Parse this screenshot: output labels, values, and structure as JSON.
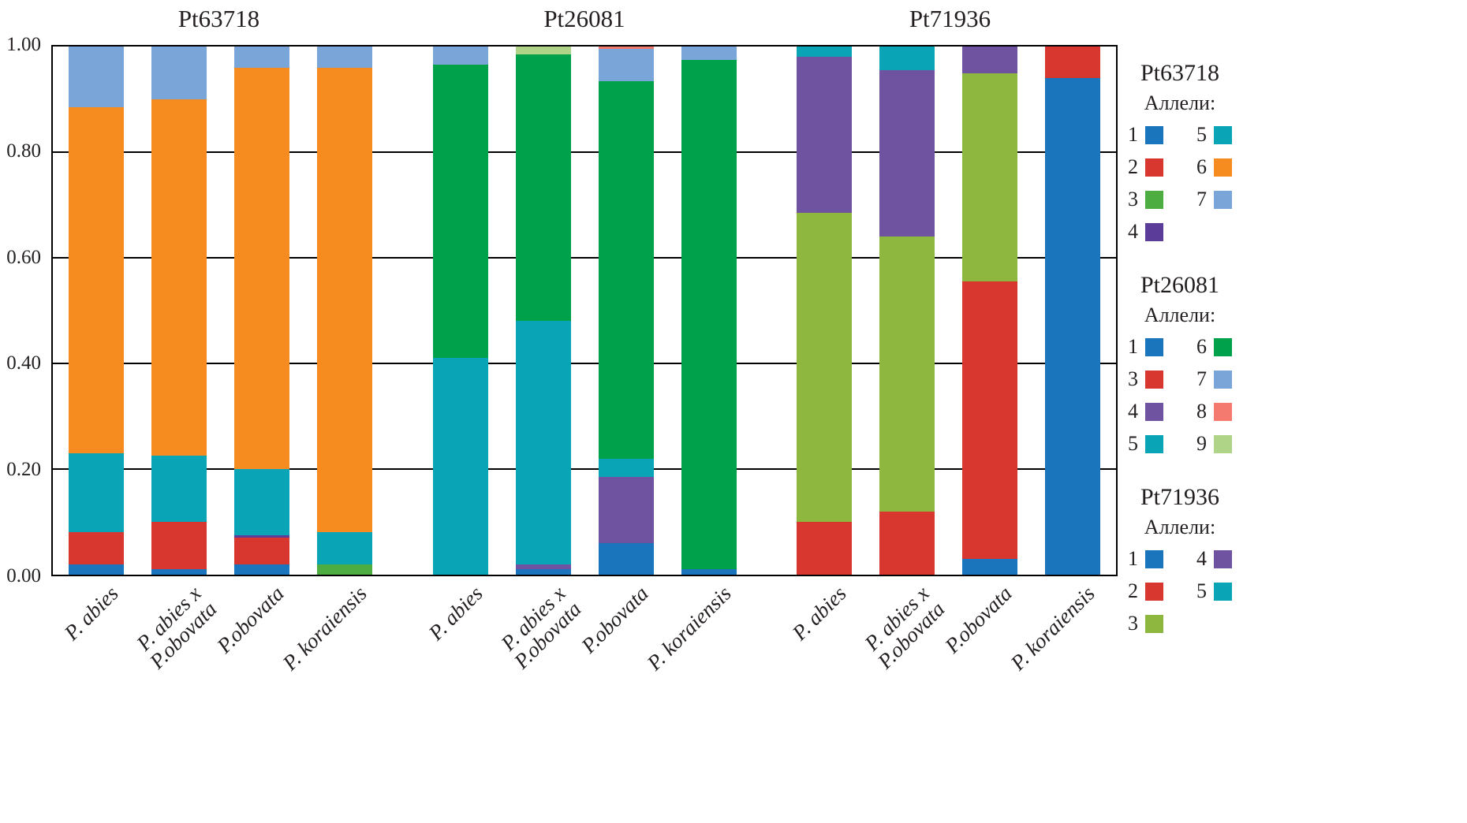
{
  "chart_data": {
    "type": "bar",
    "variant": "stacked-normalized",
    "title": "",
    "xlabel": "",
    "ylabel": "",
    "ylim": [
      0,
      1
    ],
    "yticks": [
      0,
      0.2,
      0.4,
      0.6,
      0.8,
      1
    ],
    "ytick_labels": [
      "0.00",
      "0.20",
      "0.40",
      "0.60",
      "0.80",
      "1.00"
    ],
    "grid": "horizontal",
    "legend_position": "right",
    "groups": [
      {
        "locus": "Pt63718",
        "palette": {
          "1": "#1b75bc",
          "2": "#d7372f",
          "3": "#4ead41",
          "4": "#5b3d99",
          "5": "#09a4b5",
          "6": "#f68b1f",
          "7": "#7aa5d8"
        },
        "bars": [
          {
            "category": "P. abies",
            "lines": [
              "P. abies"
            ],
            "segments": [
              [
                "1",
                0.02
              ],
              [
                "2",
                0.06
              ],
              [
                "5",
                0.15
              ],
              [
                "6",
                0.655
              ],
              [
                "7",
                0.115
              ]
            ]
          },
          {
            "category": "P. abies x P.obovata",
            "lines": [
              "P. abies x",
              "P.obovata"
            ],
            "segments": [
              [
                "1",
                0.01
              ],
              [
                "2",
                0.09
              ],
              [
                "5",
                0.125
              ],
              [
                "6",
                0.675
              ],
              [
                "7",
                0.1
              ]
            ]
          },
          {
            "category": "P.obovata",
            "lines": [
              "P.obovata"
            ],
            "segments": [
              [
                "1",
                0.02
              ],
              [
                "2",
                0.05
              ],
              [
                "4",
                0.005
              ],
              [
                "5",
                0.125
              ],
              [
                "6",
                0.76
              ],
              [
                "7",
                0.04
              ]
            ]
          },
          {
            "category": "P. koraiensis",
            "lines": [
              "P. koraiensis"
            ],
            "segments": [
              [
                "3",
                0.02
              ],
              [
                "5",
                0.06
              ],
              [
                "6",
                0.88
              ],
              [
                "7",
                0.04
              ]
            ]
          }
        ]
      },
      {
        "locus": "Pt26081",
        "palette": {
          "1": "#1b75bc",
          "3": "#d7372f",
          "4": "#7053a0",
          "5": "#09a4b5",
          "6": "#00a14b",
          "7": "#7aa5d8",
          "8": "#f4796e",
          "9": "#b0d487"
        },
        "bars": [
          {
            "category": "P. abies",
            "lines": [
              "P. abies"
            ],
            "segments": [
              [
                "5",
                0.41
              ],
              [
                "6",
                0.555
              ],
              [
                "7",
                0.035
              ]
            ]
          },
          {
            "category": "P. abies x P.obovata",
            "lines": [
              "P. abies x",
              "P.obovata"
            ],
            "segments": [
              [
                "1",
                0.01
              ],
              [
                "4",
                0.01
              ],
              [
                "5",
                0.46
              ],
              [
                "6",
                0.505
              ],
              [
                "9",
                0.015
              ]
            ]
          },
          {
            "category": "P.obovata",
            "lines": [
              "P.obovata"
            ],
            "segments": [
              [
                "1",
                0.06
              ],
              [
                "4",
                0.125
              ],
              [
                "5",
                0.035
              ],
              [
                "6",
                0.715
              ],
              [
                "7",
                0.06
              ],
              [
                "8",
                0.005
              ]
            ]
          },
          {
            "category": "P. koraiensis",
            "lines": [
              "P. koraiensis"
            ],
            "segments": [
              [
                "1",
                0.01
              ],
              [
                "6",
                0.965
              ],
              [
                "7",
                0.025
              ]
            ]
          }
        ]
      },
      {
        "locus": "Pt71936",
        "palette": {
          "1": "#1b75bc",
          "2": "#d7372f",
          "3": "#8eb73f",
          "4": "#7053a0",
          "5": "#09a4b5"
        },
        "bars": [
          {
            "category": "P. abies",
            "lines": [
              "P. abies"
            ],
            "segments": [
              [
                "2",
                0.1
              ],
              [
                "3",
                0.585
              ],
              [
                "4",
                0.295
              ],
              [
                "5",
                0.02
              ]
            ]
          },
          {
            "category": "P. abies x P.obovata",
            "lines": [
              "P. abies x",
              "P.obovata"
            ],
            "segments": [
              [
                "2",
                0.12
              ],
              [
                "3",
                0.52
              ],
              [
                "4",
                0.315
              ],
              [
                "5",
                0.045
              ]
            ]
          },
          {
            "category": "P.obovata",
            "lines": [
              "P.obovata"
            ],
            "segments": [
              [
                "1",
                0.03
              ],
              [
                "2",
                0.525
              ],
              [
                "3",
                0.395
              ],
              [
                "4",
                0.05
              ]
            ]
          },
          {
            "category": "P. koraiensis",
            "lines": [
              "P. koraiensis"
            ],
            "segments": [
              [
                "1",
                0.94
              ],
              [
                "2",
                0.06
              ]
            ]
          }
        ]
      }
    ]
  },
  "legend": {
    "sections": [
      {
        "locus": "Pt63718",
        "subtitle": "Аллели:",
        "columns": [
          [
            "1",
            "2",
            "3",
            "4"
          ],
          [
            "5",
            "6",
            "7"
          ]
        ]
      },
      {
        "locus": "Pt26081",
        "subtitle": "Аллели:",
        "columns": [
          [
            "1",
            "3",
            "4",
            "5"
          ],
          [
            "6",
            "7",
            "8",
            "9"
          ]
        ]
      },
      {
        "locus": "Pt71936",
        "subtitle": "Аллели:",
        "columns": [
          [
            "1",
            "2",
            "3"
          ],
          [
            "4",
            "5"
          ]
        ]
      }
    ]
  },
  "colors": {
    "axis": "#000000",
    "text": "#231f20",
    "background": "#ffffff"
  }
}
